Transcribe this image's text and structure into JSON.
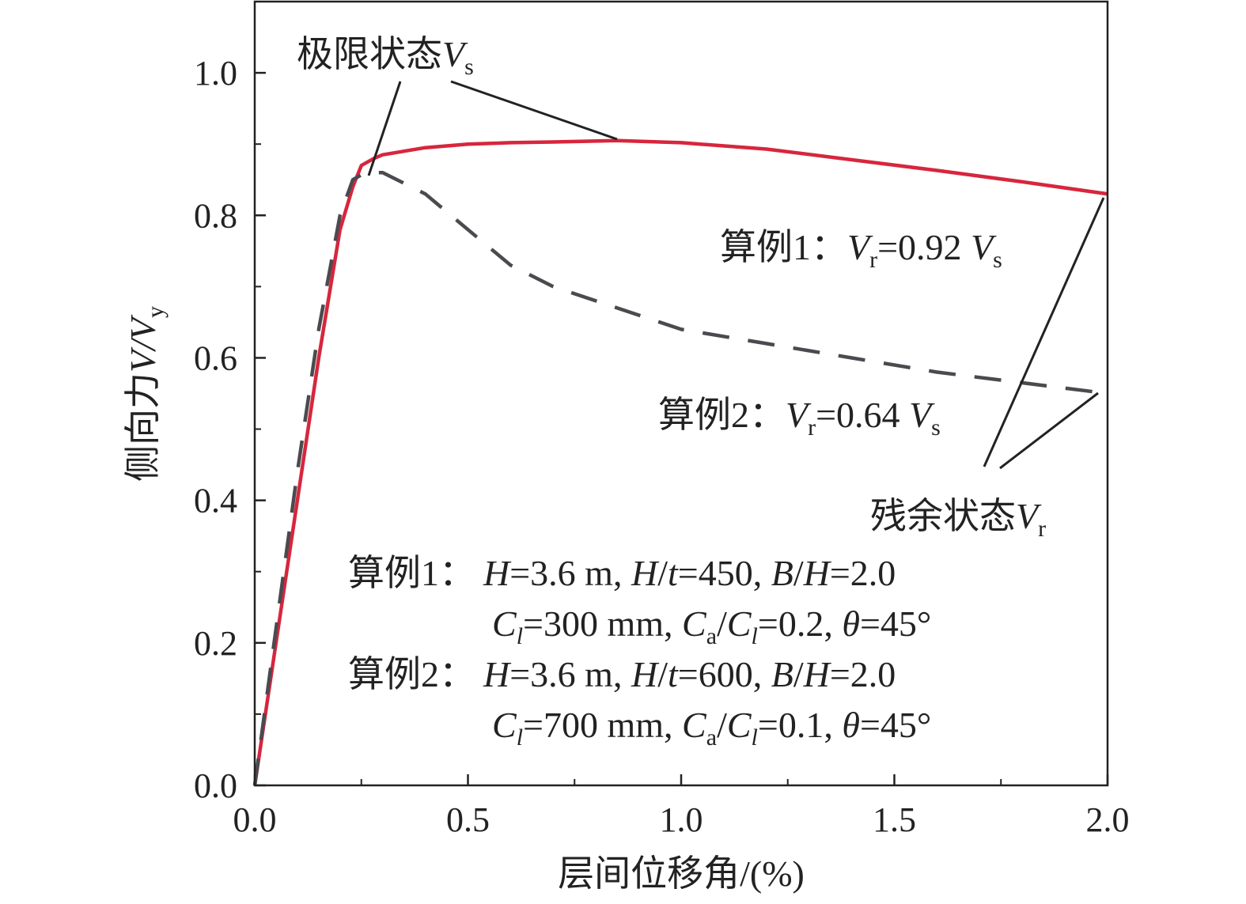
{
  "chart_data": {
    "type": "line",
    "xlabel": "层间位移角/(%)",
    "ylabel": {
      "prefix": "侧向力",
      "V": "V",
      "slash": "/",
      "Vy": "V",
      "sub": "y"
    },
    "xlim": [
      0.0,
      2.0
    ],
    "ylim": [
      0.0,
      1.1
    ],
    "x_ticks": [
      "0.0",
      "0.5",
      "1.0",
      "1.5",
      "2.0"
    ],
    "y_ticks": [
      "0.0",
      "0.2",
      "0.4",
      "0.6",
      "0.8",
      "1.0"
    ],
    "grid": false,
    "series": [
      {
        "color": "#d7263d",
        "style": "solid",
        "x": [
          0.0,
          0.05,
          0.1,
          0.15,
          0.2,
          0.23,
          0.25,
          0.28,
          0.3,
          0.4,
          0.5,
          0.6,
          0.7,
          0.85,
          1.0,
          1.2,
          1.4,
          1.6,
          1.8,
          2.0
        ],
        "y": [
          0.0,
          0.2,
          0.4,
          0.6,
          0.78,
          0.84,
          0.87,
          0.88,
          0.885,
          0.895,
          0.9,
          0.902,
          0.903,
          0.905,
          0.902,
          0.893,
          0.878,
          0.863,
          0.847,
          0.83
        ]
      },
      {
        "color": "#4a4a4f",
        "style": "dashed",
        "x": [
          0.0,
          0.05,
          0.1,
          0.15,
          0.2,
          0.23,
          0.26,
          0.3,
          0.4,
          0.5,
          0.6,
          0.7,
          0.8,
          0.9,
          1.0,
          1.2,
          1.4,
          1.6,
          1.8,
          2.0
        ],
        "y": [
          0.0,
          0.22,
          0.44,
          0.64,
          0.8,
          0.85,
          0.86,
          0.86,
          0.83,
          0.78,
          0.73,
          0.7,
          0.68,
          0.66,
          0.64,
          0.62,
          0.6,
          0.58,
          0.565,
          0.55
        ]
      }
    ],
    "annotations": {
      "limit_state": {
        "text": "极限状态",
        "V": "V",
        "sub": "s"
      },
      "residual_state": {
        "text": "残余状态",
        "V": "V",
        "sub": "r"
      },
      "case1_ratio": {
        "label": "算例1：",
        "V": "V",
        "sub": "r",
        "value": "=0.92 ",
        "Vs": "V",
        "sub2": "s"
      },
      "case2_ratio": {
        "label": "算例2：",
        "V": "V",
        "sub": "r",
        "value": "=0.64 ",
        "Vs": "V",
        "sub2": "s"
      },
      "case1_params": {
        "label": "算例1：",
        "line1": [
          "H",
          "=3.6 m, ",
          "H",
          "/",
          "t",
          "=450, ",
          "B",
          "/",
          "H",
          "=2.0"
        ],
        "line2": [
          "C",
          "l",
          "=300 mm, ",
          "C",
          "a",
          "/",
          "C",
          "l",
          "=0.2, ",
          "θ",
          "=45°"
        ]
      },
      "case2_params": {
        "label": "算例2：",
        "line1": [
          "H",
          "=3.6 m, ",
          "H",
          "/",
          "t",
          "=600, ",
          "B",
          "/",
          "H",
          "=2.0"
        ],
        "line2": [
          "C",
          "l",
          "=700 mm, ",
          "C",
          "a",
          "/",
          "C",
          "l",
          "=0.1, ",
          "θ",
          "=45°"
        ]
      }
    }
  }
}
